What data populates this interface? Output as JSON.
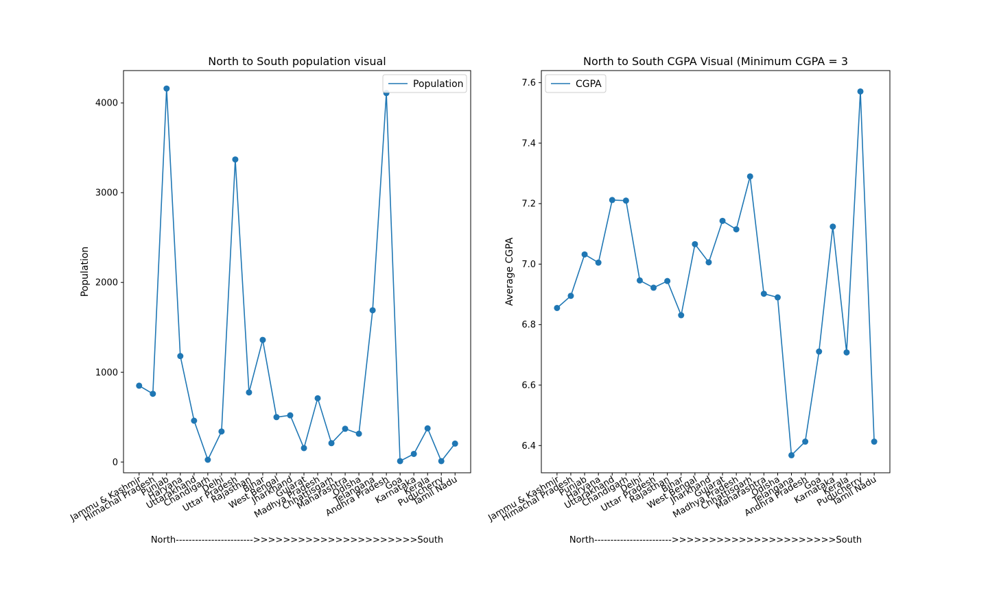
{
  "chart_data": [
    {
      "type": "line",
      "title": "North to South population visual",
      "xlabel": "North------------------------>>>>>>>>>>>>>>>>>>>>>>South",
      "ylabel": "Population",
      "ylim": [
        -120,
        4360
      ],
      "yticks": [
        0,
        1000,
        2000,
        3000,
        4000
      ],
      "grid": false,
      "legend": "upper-right",
      "color": "#1f77b4",
      "categories": [
        "Jammu & Kashmir",
        "Himachal Pradesh",
        "Punjab",
        "Haryana",
        "Uttarakhand",
        "Chandigarh",
        "Delhi",
        "Uttar Pradesh",
        "Rajasthan",
        "Bihar",
        "West Bengal",
        "Jharkhand",
        "Gujarat",
        "Madhya Pradesh",
        "Chhattisgarh",
        "Maharashtra",
        "Odisha",
        "Telangana",
        "Andhra Pradesh",
        "Goa",
        "Karnataka",
        "Kerala",
        "Puducherry",
        "Tamil Nadu"
      ],
      "series": [
        {
          "name": "Population",
          "values": [
            850,
            760,
            4160,
            1180,
            460,
            25,
            340,
            3370,
            775,
            1360,
            500,
            520,
            155,
            710,
            210,
            370,
            315,
            1690,
            4110,
            10,
            90,
            375,
            10,
            205
          ]
        }
      ]
    },
    {
      "type": "line",
      "title": "North to South CGPA Visual (Minimum CGPA = 3",
      "xlabel": "North------------------------>>>>>>>>>>>>>>>>>>>>>>South",
      "ylabel": "Average CGPA",
      "ylim": [
        6.31,
        7.64
      ],
      "yticks": [
        6.4,
        6.6,
        6.8,
        7.0,
        7.2,
        7.4,
        7.6
      ],
      "grid": false,
      "legend": "upper-left",
      "color": "#1f77b4",
      "categories": [
        "Jammu & Kashmir",
        "Himachal Pradesh",
        "Punjab",
        "Haryana",
        "Uttarakhand",
        "Chandigarh",
        "Delhi",
        "Uttar Pradesh",
        "Rajasthan",
        "Bihar",
        "West Bengal",
        "Jharkhand",
        "Gujarat",
        "Madhya Pradesh",
        "Chhattisgarh",
        "Maharashtra",
        "Odisha",
        "Telangana",
        "Andhra Pradesh",
        "Goa",
        "Karnataka",
        "Kerala",
        "Puducherry",
        "Tamil Nadu"
      ],
      "series": [
        {
          "name": "CGPA",
          "values": [
            6.855,
            6.895,
            7.032,
            7.005,
            7.212,
            7.21,
            6.946,
            6.922,
            6.944,
            6.831,
            7.066,
            7.006,
            7.143,
            7.115,
            7.29,
            6.902,
            6.89,
            6.368,
            6.413,
            6.711,
            7.124,
            6.708,
            7.571,
            6.413
          ]
        }
      ]
    }
  ]
}
